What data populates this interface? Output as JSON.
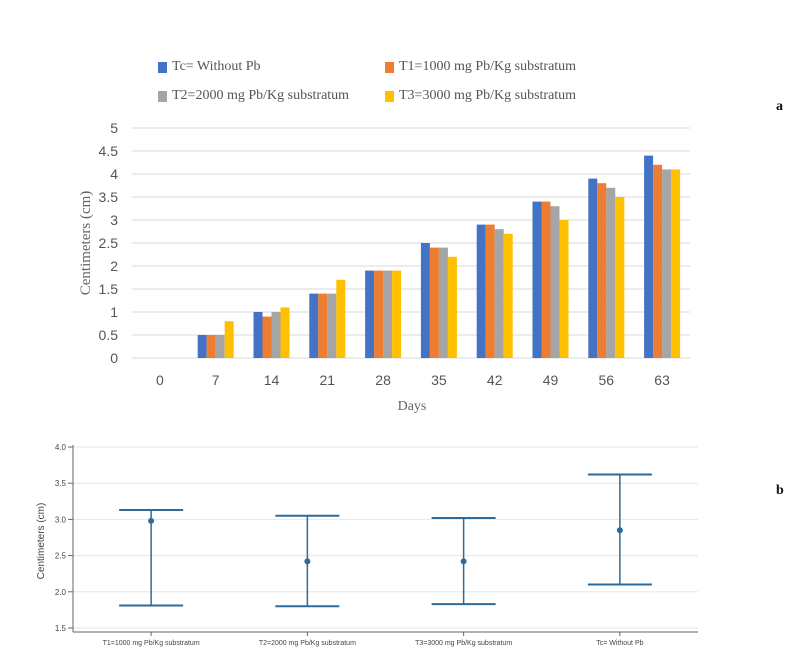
{
  "panel_labels": {
    "a": "a",
    "b": "b"
  },
  "chart_data": [
    {
      "type": "bar",
      "xlabel": "Days",
      "ylabel": "Centimeters (cm)",
      "ylim": [
        0,
        5
      ],
      "yticks": [
        "0",
        "0.5",
        "1",
        "1.5",
        "2",
        "2.5",
        "3",
        "3.5",
        "4",
        "4.5",
        "5"
      ],
      "grid": true,
      "legend_position": "top",
      "categories": [
        "0",
        "7",
        "14",
        "21",
        "28",
        "35",
        "42",
        "49",
        "56",
        "63"
      ],
      "series": [
        {
          "name": "Tc= Without Pb",
          "color": "#4472C4",
          "values": [
            0,
            0.5,
            1.0,
            1.4,
            1.9,
            2.5,
            2.9,
            3.4,
            3.9,
            4.4
          ]
        },
        {
          "name": "T1=1000 mg Pb/Kg substratum",
          "color": "#ED7D31",
          "values": [
            0,
            0.5,
            0.9,
            1.4,
            1.9,
            2.4,
            2.9,
            3.4,
            3.8,
            4.2
          ]
        },
        {
          "name": "T2=2000 mg Pb/Kg substratum",
          "color": "#A5A5A5",
          "values": [
            0,
            0.5,
            1.0,
            1.4,
            1.9,
            2.4,
            2.8,
            3.3,
            3.7,
            4.1
          ]
        },
        {
          "name": "T3=3000 mg Pb/Kg substratum",
          "color": "#FFC000",
          "values": [
            0,
            0.8,
            1.1,
            1.7,
            1.9,
            2.2,
            2.7,
            3.0,
            3.5,
            4.1
          ]
        }
      ]
    },
    {
      "type": "scatter",
      "subtype": "error-bar",
      "ylabel": "Centimeters (cm)",
      "yticks": [
        "1.5",
        "2.0",
        "2.5",
        "3.0",
        "3.5",
        "4.0"
      ],
      "ylim": [
        1.5,
        4.0
      ],
      "grid": true,
      "color": "#2E6B9A",
      "categories": [
        "T1=1000 mg Pb/Kg substratum",
        "T2=2000 mg Pb/Kg substratum",
        "T3=3000 mg Pb/Kg substratum",
        "Tc= Without Pb"
      ],
      "points": [
        {
          "mean": 2.98,
          "lower": 1.81,
          "upper": 3.13
        },
        {
          "mean": 2.42,
          "lower": 1.8,
          "upper": 3.05
        },
        {
          "mean": 2.42,
          "lower": 1.83,
          "upper": 3.02
        },
        {
          "mean": 2.85,
          "lower": 2.1,
          "upper": 3.62
        }
      ]
    }
  ]
}
